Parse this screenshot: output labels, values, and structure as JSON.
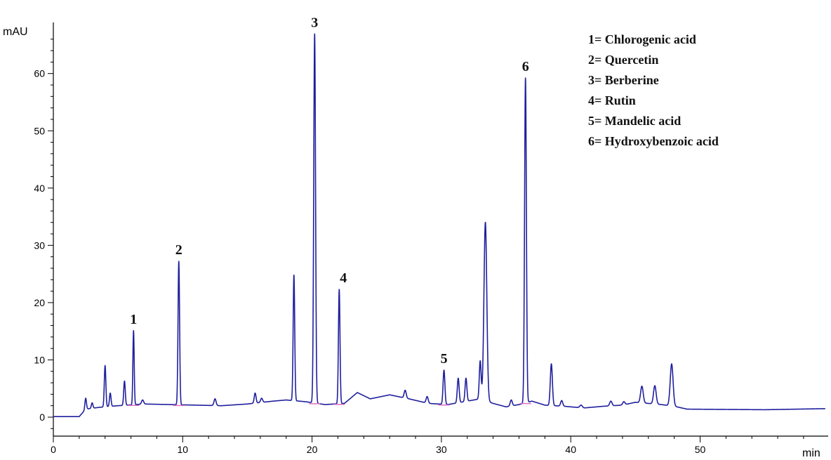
{
  "colors": {
    "trace": "#1f1f9e",
    "axis": "#000000",
    "baseline_marker": "#e070c0",
    "text": "#111111"
  },
  "chart_data": {
    "type": "line",
    "title": "",
    "xlabel": "min",
    "ylabel": "mAU",
    "xlim": [
      0,
      60
    ],
    "ylim": [
      -2,
      68
    ],
    "x_ticks": [
      0,
      10,
      20,
      30,
      40,
      50
    ],
    "x_tick_labels": [
      "0",
      "10",
      "20",
      "30",
      "40",
      "50"
    ],
    "y_ticks": [
      0,
      10,
      20,
      30,
      40,
      50,
      60
    ],
    "y_tick_labels": [
      "0",
      "10",
      "20",
      "30",
      "40",
      "50",
      "60"
    ],
    "grid": false,
    "legend_position": "top-right",
    "baseline": [
      [
        0,
        0.1
      ],
      [
        2.0,
        0.1
      ],
      [
        2.5,
        1.4
      ],
      [
        3.5,
        1.7
      ],
      [
        5.0,
        2.0
      ],
      [
        7.0,
        2.3
      ],
      [
        9.0,
        2.2
      ],
      [
        11.0,
        2.1
      ],
      [
        13.0,
        2.0
      ],
      [
        15.0,
        2.3
      ],
      [
        17.0,
        2.8
      ],
      [
        18.0,
        3.0
      ],
      [
        19.5,
        2.7
      ],
      [
        21.0,
        2.2
      ],
      [
        22.5,
        2.4
      ],
      [
        23.5,
        4.3
      ],
      [
        24.5,
        3.2
      ],
      [
        26.0,
        3.9
      ],
      [
        27.5,
        3.2
      ],
      [
        29.0,
        2.4
      ],
      [
        30.5,
        2.2
      ],
      [
        32.0,
        2.8
      ],
      [
        33.0,
        3.2
      ],
      [
        34.0,
        2.4
      ],
      [
        35.0,
        1.8
      ],
      [
        36.0,
        2.2
      ],
      [
        37.0,
        2.8
      ],
      [
        38.0,
        2.1
      ],
      [
        39.5,
        1.9
      ],
      [
        41.0,
        1.6
      ],
      [
        42.5,
        1.9
      ],
      [
        44.0,
        2.1
      ],
      [
        45.0,
        2.6
      ],
      [
        46.0,
        2.4
      ],
      [
        47.0,
        2.2
      ],
      [
        48.0,
        1.9
      ],
      [
        49.0,
        1.4
      ],
      [
        55.0,
        1.3
      ],
      [
        60.0,
        1.5
      ]
    ],
    "peaks": [
      {
        "x": 2.5,
        "y": 3.3,
        "w": 0.06
      },
      {
        "x": 3.0,
        "y": 2.5,
        "w": 0.06
      },
      {
        "x": 4.0,
        "y": 9.0,
        "w": 0.06
      },
      {
        "x": 4.4,
        "y": 4.2,
        "w": 0.06
      },
      {
        "x": 5.5,
        "y": 6.3,
        "w": 0.06
      },
      {
        "x": 6.2,
        "y": 15.1,
        "w": 0.05,
        "label": "1"
      },
      {
        "x": 6.9,
        "y": 3.0,
        "w": 0.08
      },
      {
        "x": 9.7,
        "y": 27.2,
        "w": 0.06,
        "label": "2"
      },
      {
        "x": 12.5,
        "y": 3.2,
        "w": 0.08
      },
      {
        "x": 15.6,
        "y": 4.2,
        "w": 0.07
      },
      {
        "x": 16.1,
        "y": 3.3,
        "w": 0.08
      },
      {
        "x": 18.6,
        "y": 24.8,
        "w": 0.06
      },
      {
        "x": 20.2,
        "y": 66.9,
        "w": 0.07,
        "label": "3"
      },
      {
        "x": 22.1,
        "y": 22.3,
        "w": 0.06,
        "label": "4"
      },
      {
        "x": 27.2,
        "y": 4.7,
        "w": 0.08
      },
      {
        "x": 28.9,
        "y": 3.6,
        "w": 0.08
      },
      {
        "x": 30.2,
        "y": 8.2,
        "w": 0.07,
        "label": "5"
      },
      {
        "x": 31.3,
        "y": 6.8,
        "w": 0.07
      },
      {
        "x": 31.9,
        "y": 6.8,
        "w": 0.07
      },
      {
        "x": 33.0,
        "y": 9.8,
        "w": 0.07
      },
      {
        "x": 33.4,
        "y": 34.0,
        "w": 0.11
      },
      {
        "x": 35.4,
        "y": 3.0,
        "w": 0.08
      },
      {
        "x": 36.5,
        "y": 59.2,
        "w": 0.07,
        "label": "6"
      },
      {
        "x": 38.5,
        "y": 9.3,
        "w": 0.08
      },
      {
        "x": 39.3,
        "y": 2.9,
        "w": 0.08
      },
      {
        "x": 40.8,
        "y": 2.1,
        "w": 0.1
      },
      {
        "x": 43.1,
        "y": 2.8,
        "w": 0.09
      },
      {
        "x": 44.1,
        "y": 2.7,
        "w": 0.09
      },
      {
        "x": 45.5,
        "y": 5.4,
        "w": 0.1
      },
      {
        "x": 46.5,
        "y": 5.5,
        "w": 0.1
      },
      {
        "x": 47.8,
        "y": 9.3,
        "w": 0.11
      }
    ],
    "peak_labels": [
      {
        "text": "1",
        "x": 6.2,
        "y": 15.1
      },
      {
        "text": "2",
        "x": 9.7,
        "y": 27.2
      },
      {
        "text": "3",
        "x": 20.2,
        "y": 66.9
      },
      {
        "text": "4",
        "x": 22.1,
        "y": 22.3
      },
      {
        "text": "5",
        "x": 30.2,
        "y": 8.2
      },
      {
        "text": "6",
        "x": 36.5,
        "y": 59.2
      }
    ],
    "legend": [
      "1= Chlorogenic acid",
      "2= Quercetin",
      "3= Berberine",
      "4= Rutin",
      "5= Mandelic acid",
      "6= Hydroxybenzoic acid"
    ]
  }
}
